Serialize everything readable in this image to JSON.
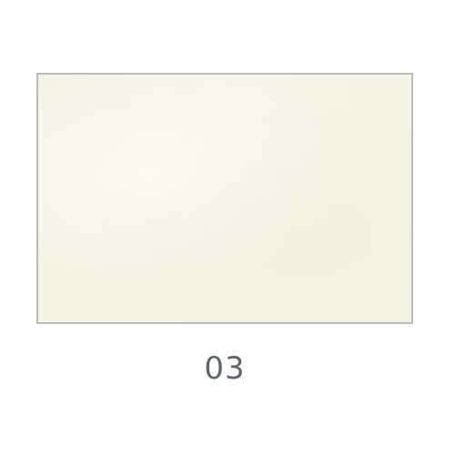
{
  "swatch": {
    "label": "03",
    "color": "#f6f4e6",
    "border_color": "#bdbdb6"
  }
}
